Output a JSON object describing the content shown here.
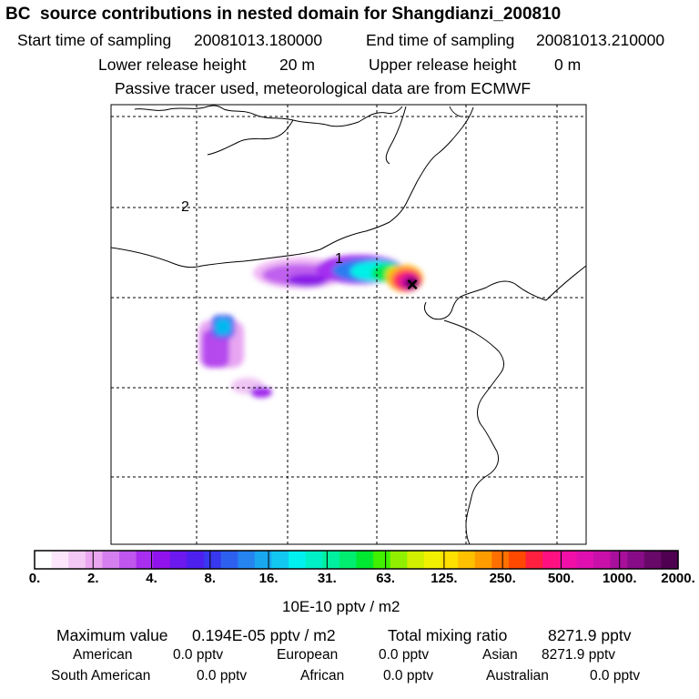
{
  "header": {
    "title": "BC  source contributions in nested domain for Shangdianzi_200810",
    "start_label": "Start time of sampling",
    "start_value": "20081013.180000",
    "end_label": "End time of sampling",
    "end_value": "20081013.210000",
    "lower_label": "Lower release height",
    "lower_value": "20 m",
    "upper_label": "Upper release height",
    "upper_value": "0 m",
    "note": "Passive tracer used, meteorological data are from ECMWF"
  },
  "map": {
    "markers": [
      {
        "id": "marker-1",
        "label": "1"
      },
      {
        "id": "marker-2",
        "label": "2"
      }
    ],
    "receptor_symbol": "×"
  },
  "colorbar": {
    "ticks": [
      "0.",
      "2.",
      "4.",
      "8.",
      "16.",
      "31.",
      "63.",
      "125.",
      "250.",
      "500.",
      "1000.",
      "2000."
    ],
    "unit": "10E-10 pptv / m2",
    "colors": [
      "#ffffff",
      "#fbe6fb",
      "#f3c8f5",
      "#eaa6f0",
      "#d57ff0",
      "#c056ee",
      "#a82ef0",
      "#9012ec",
      "#6b19ee",
      "#4d20f0",
      "#3838f0",
      "#2e60f0",
      "#2584f0",
      "#19a8f0",
      "#12c8f0",
      "#00f0f0",
      "#00f0c8",
      "#00f0a0",
      "#00ee70",
      "#00e830",
      "#40f000",
      "#90f000",
      "#d0f000",
      "#f0f000",
      "#ffe000",
      "#ffc000",
      "#ff9c00",
      "#ff7000",
      "#ff4800",
      "#ff2040",
      "#ff1080",
      "#f010a8",
      "#e010b0",
      "#c810a8",
      "#a8109c",
      "#880c88",
      "#680868",
      "#500050"
    ]
  },
  "summary": {
    "max_label": "Maximum value",
    "max_value": "0.194E-05 pptv / m2",
    "total_label": "Total mixing ratio",
    "total_value": "8271.9 pptv",
    "regions": [
      {
        "name": "American",
        "value": "0.0 pptv"
      },
      {
        "name": "European",
        "value": "0.0 pptv"
      },
      {
        "name": "Asian",
        "value": "8271.9 pptv"
      },
      {
        "name": "South American",
        "value": "0.0 pptv"
      },
      {
        "name": "African",
        "value": "0.0 pptv"
      },
      {
        "name": "Australian",
        "value": "0.0 pptv"
      }
    ]
  }
}
